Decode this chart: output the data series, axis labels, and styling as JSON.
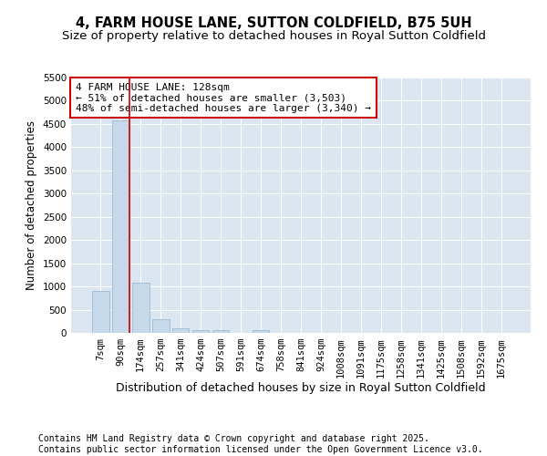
{
  "title": "4, FARM HOUSE LANE, SUTTON COLDFIELD, B75 5UH",
  "subtitle": "Size of property relative to detached houses in Royal Sutton Coldfield",
  "xlabel": "Distribution of detached houses by size in Royal Sutton Coldfield",
  "ylabel": "Number of detached properties",
  "categories": [
    "7sqm",
    "90sqm",
    "174sqm",
    "257sqm",
    "341sqm",
    "424sqm",
    "507sqm",
    "591sqm",
    "674sqm",
    "758sqm",
    "841sqm",
    "924sqm",
    "1008sqm",
    "1091sqm",
    "1175sqm",
    "1258sqm",
    "1341sqm",
    "1425sqm",
    "1508sqm",
    "1592sqm",
    "1675sqm"
  ],
  "values": [
    900,
    4570,
    1080,
    300,
    90,
    65,
    50,
    0,
    65,
    0,
    0,
    0,
    0,
    0,
    0,
    0,
    0,
    0,
    0,
    0,
    0
  ],
  "bar_color": "#c5d9ea",
  "bar_edgecolor": "#8fb4d0",
  "bar_width": 0.85,
  "vline_color": "#cc0000",
  "annotation_text": "4 FARM HOUSE LANE: 128sqm\n← 51% of detached houses are smaller (3,503)\n48% of semi-detached houses are larger (3,340) →",
  "annotation_box_edgecolor": "#cc0000",
  "annotation_box_facecolor": "#ffffff",
  "ylim": [
    0,
    5500
  ],
  "yticks": [
    0,
    500,
    1000,
    1500,
    2000,
    2500,
    3000,
    3500,
    4000,
    4500,
    5000,
    5500
  ],
  "background_color": "#dce6f1",
  "grid_color": "#ffffff",
  "footer": "Contains HM Land Registry data © Crown copyright and database right 2025.\nContains public sector information licensed under the Open Government Licence v3.0.",
  "title_fontsize": 10.5,
  "subtitle_fontsize": 9.5,
  "xlabel_fontsize": 9,
  "ylabel_fontsize": 8.5,
  "tick_fontsize": 7.5,
  "footer_fontsize": 7,
  "annot_fontsize": 8
}
